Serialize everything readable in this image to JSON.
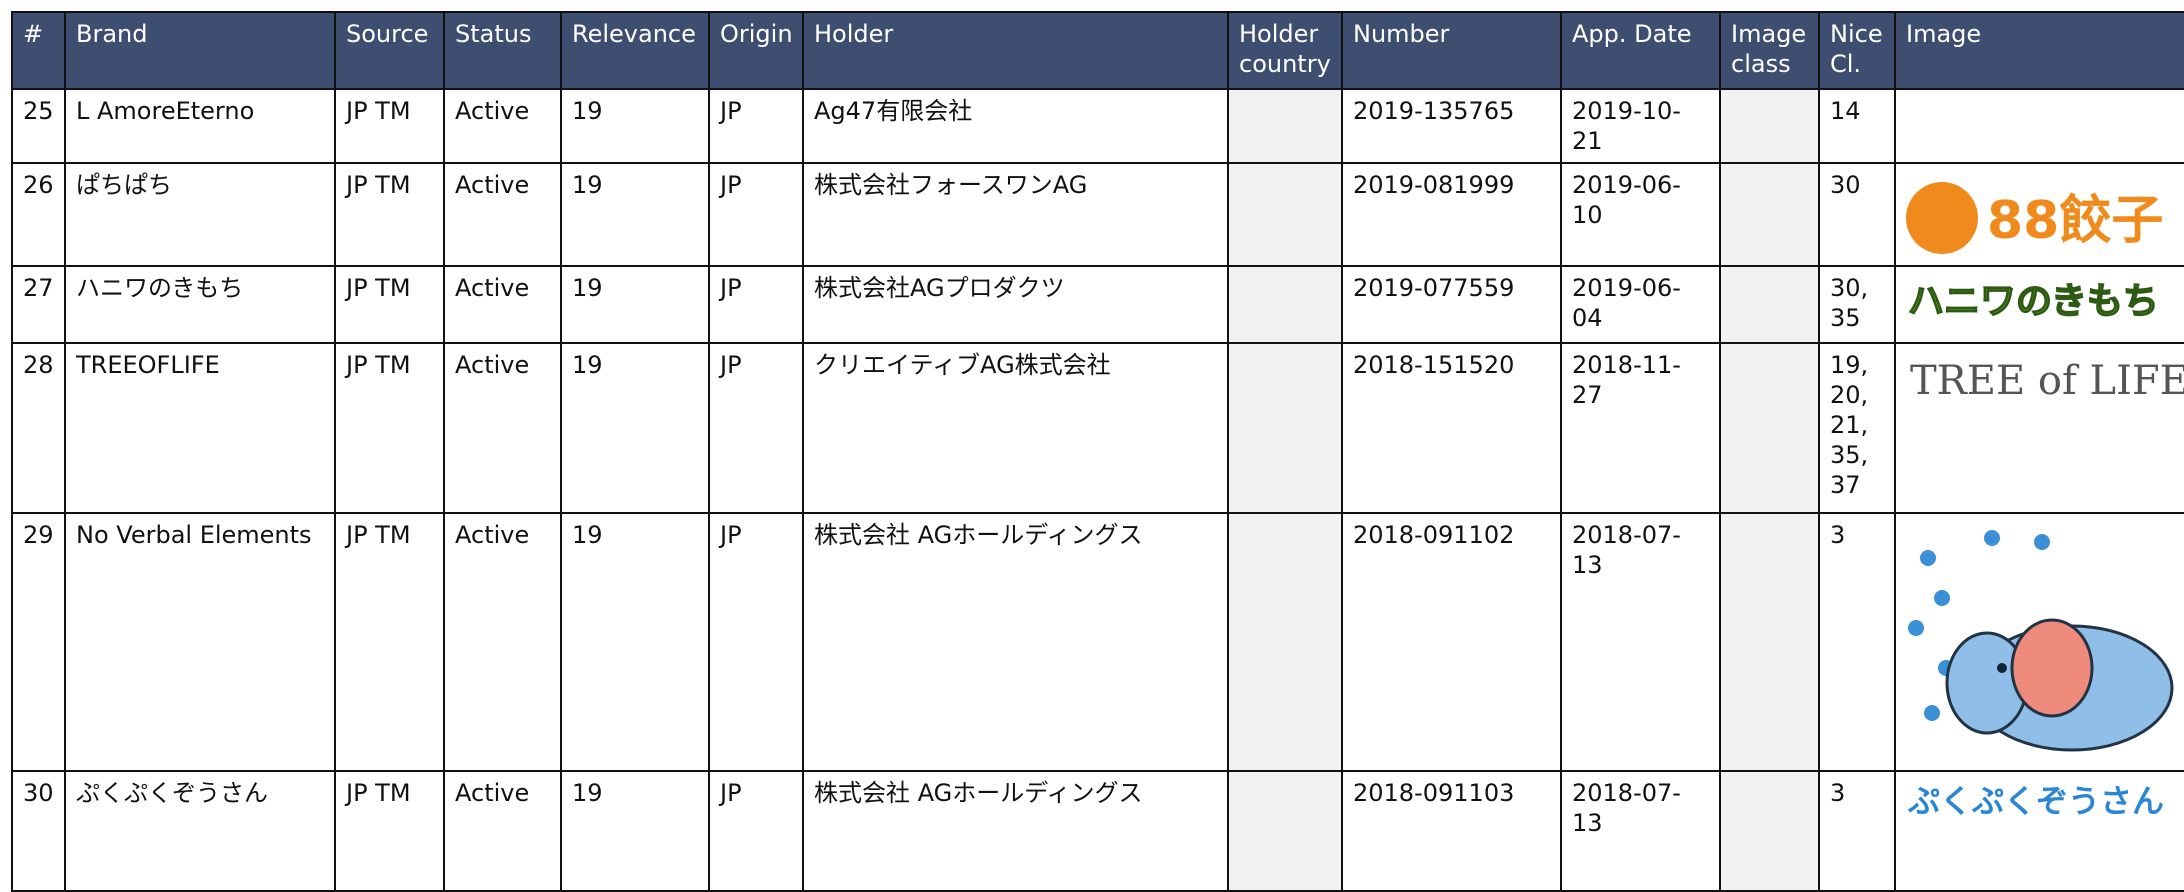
{
  "table": {
    "headers": [
      "#",
      "Brand",
      "Source",
      "Status",
      "Relevance",
      "Origin",
      "Holder",
      "Holder country",
      "Number",
      "App. Date",
      "Image class",
      "Nice Cl.",
      "Image"
    ],
    "rows": [
      {
        "cells": [
          "25",
          "L AmoreEterno",
          "JP TM",
          "Active",
          "19",
          "JP",
          "Ag47有限会社",
          "",
          "2019-135765",
          "2019-10-21",
          "",
          "14"
        ],
        "image": null
      },
      {
        "cells": [
          "26",
          "ぱちぱち",
          "JP TM",
          "Active",
          "19",
          "JP",
          "株式会社フォースワンAG",
          "",
          "2019-081999",
          "2019-06-10",
          "",
          "30"
        ],
        "image": "88餃子"
      },
      {
        "cells": [
          "27",
          "ハニワのきもち",
          "JP TM",
          "Active",
          "19",
          "JP",
          "株式会社AGプロダクツ",
          "",
          "2019-077559",
          "2019-06-04",
          "",
          "30, 35"
        ],
        "image": "ハニワのきもち"
      },
      {
        "cells": [
          "28",
          "TREEOFLIFE",
          "JP TM",
          "Active",
          "19",
          "JP",
          "クリエイティブAG株式会社",
          "",
          "2018-151520",
          "2018-11-27",
          "",
          "19, 20, 21, 35, 37"
        ],
        "image": "TREE of LIFE"
      },
      {
        "cells": [
          "29",
          "No Verbal Elements",
          "JP TM",
          "Active",
          "19",
          "JP",
          "株式会社 AGホールディングス",
          "",
          "2018-091102",
          "2018-07-13",
          "",
          "3"
        ],
        "image": ""
      },
      {
        "cells": [
          "30",
          "ぷくぷくぞうさん",
          "JP TM",
          "Active",
          "19",
          "JP",
          "株式会社 AGホールディングス",
          "",
          "2018-091103",
          "2018-07-13",
          "",
          "3"
        ],
        "image": "ぷくぷくぞうさん"
      }
    ]
  }
}
